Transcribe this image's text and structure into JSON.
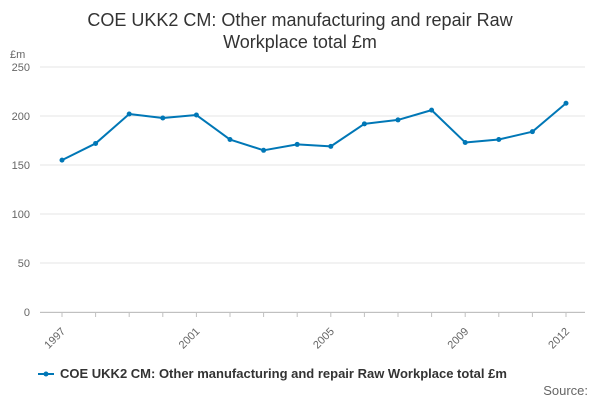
{
  "chart_data": {
    "type": "line",
    "title": "COE UKK2 CM: Other manufacturing and repair Raw Workplace total £m",
    "title_lines": [
      "COE UKK2 CM: Other manufacturing and repair Raw",
      "Workplace total £m"
    ],
    "y_unit": "£m",
    "ylim": [
      0,
      250
    ],
    "y_ticks": [
      0,
      50,
      100,
      150,
      200,
      250
    ],
    "x": [
      1997,
      1998,
      1999,
      2000,
      2001,
      2002,
      2003,
      2004,
      2005,
      2006,
      2007,
      2008,
      2009,
      2010,
      2011,
      2012
    ],
    "x_tick_labels": [
      "1997",
      "2001",
      "2005",
      "2009",
      "2012"
    ],
    "series": [
      {
        "name": "COE UKK2 CM: Other manufacturing and repair Raw Workplace total £m",
        "color": "#0077b6",
        "values": [
          155,
          172,
          202,
          198,
          201,
          176,
          165,
          171,
          169,
          192,
          196,
          206,
          173,
          176,
          184,
          213
        ]
      }
    ],
    "grid": true,
    "legend": "bottom",
    "source_label": "Source:"
  }
}
